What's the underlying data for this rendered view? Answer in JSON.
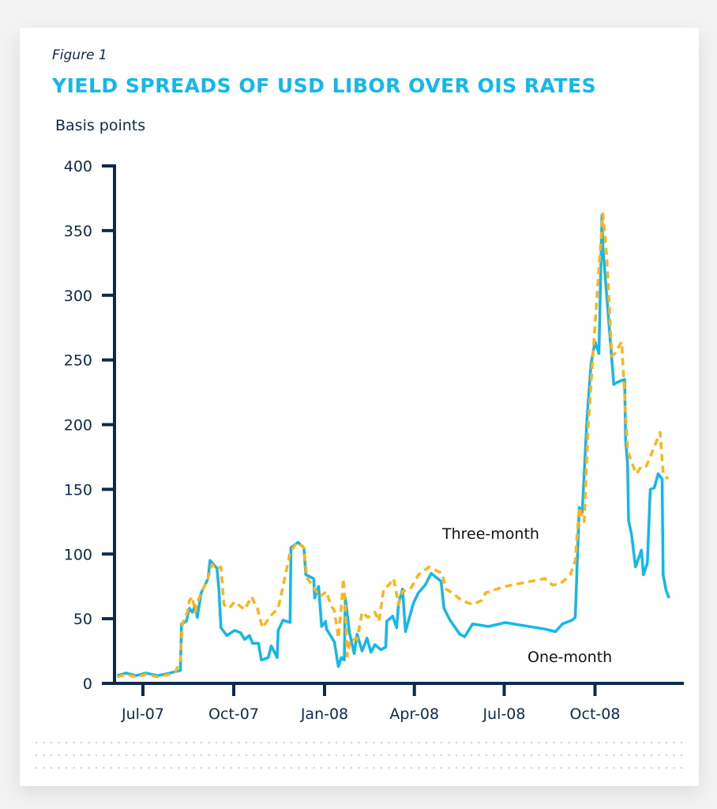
{
  "figure_label": "Figure 1",
  "colors": {
    "one_month": "#12b8ea",
    "three_month": "#fbb41b",
    "axis": "#0d2a4a",
    "title": "#12b8ea"
  },
  "chart_data": {
    "type": "line",
    "title": "YIELD SPREADS OF USD LIBOR OVER OIS RATES",
    "ylabel": "Basis points",
    "xlabel": "",
    "ylim": [
      0,
      400
    ],
    "yticks": [
      0,
      50,
      100,
      150,
      200,
      250,
      300,
      350,
      400
    ],
    "xticks": [
      {
        "date": "2007-07-01",
        "label": "Jul-07"
      },
      {
        "date": "2007-10-01",
        "label": "Oct-07"
      },
      {
        "date": "2008-01-01",
        "label": "Jan-08"
      },
      {
        "date": "2008-04-01",
        "label": "Apr-08"
      },
      {
        "date": "2008-07-01",
        "label": "Jul-08"
      },
      {
        "date": "2008-10-01",
        "label": "Oct-08"
      }
    ],
    "grid": false,
    "series": [
      {
        "name": "Three-month",
        "style": "dashed",
        "points": [
          [
            "2007-06-05",
            5
          ],
          [
            "2007-06-14",
            7
          ],
          [
            "2007-06-24",
            5
          ],
          [
            "2007-07-04",
            7
          ],
          [
            "2007-07-16",
            5
          ],
          [
            "2007-07-28",
            7
          ],
          [
            "2007-08-03",
            9
          ],
          [
            "2007-08-08",
            18
          ],
          [
            "2007-08-10",
            46
          ],
          [
            "2007-08-15",
            55
          ],
          [
            "2007-08-17",
            64
          ],
          [
            "2007-08-20",
            67
          ],
          [
            "2007-08-23",
            55
          ],
          [
            "2007-08-25",
            62
          ],
          [
            "2007-08-29",
            70
          ],
          [
            "2007-09-04",
            79
          ],
          [
            "2007-09-09",
            92
          ],
          [
            "2007-09-14",
            89
          ],
          [
            "2007-09-18",
            90
          ],
          [
            "2007-09-21",
            61
          ],
          [
            "2007-09-26",
            58
          ],
          [
            "2007-10-02",
            63
          ],
          [
            "2007-10-12",
            57
          ],
          [
            "2007-10-19",
            67
          ],
          [
            "2007-10-25",
            58
          ],
          [
            "2007-10-30",
            43
          ],
          [
            "2007-11-07",
            52
          ],
          [
            "2007-11-15",
            58
          ],
          [
            "2007-11-21",
            79
          ],
          [
            "2007-11-27",
            101
          ],
          [
            "2007-12-04",
            109
          ],
          [
            "2007-12-11",
            105
          ],
          [
            "2007-12-14",
            82
          ],
          [
            "2007-12-22",
            73
          ],
          [
            "2007-12-27",
            67
          ],
          [
            "2008-01-03",
            71
          ],
          [
            "2008-01-07",
            61
          ],
          [
            "2008-01-11",
            56
          ],
          [
            "2008-01-15",
            35
          ],
          [
            "2008-01-18",
            60
          ],
          [
            "2008-01-20",
            81
          ],
          [
            "2008-01-22",
            60
          ],
          [
            "2008-01-24",
            21
          ],
          [
            "2008-01-27",
            34
          ],
          [
            "2008-02-03",
            34
          ],
          [
            "2008-02-08",
            55
          ],
          [
            "2008-02-14",
            51
          ],
          [
            "2008-02-21",
            55
          ],
          [
            "2008-02-25",
            48
          ],
          [
            "2008-03-01",
            73
          ],
          [
            "2008-03-06",
            76
          ],
          [
            "2008-03-11",
            81
          ],
          [
            "2008-03-16",
            61
          ],
          [
            "2008-03-20",
            71
          ],
          [
            "2008-03-28",
            73
          ],
          [
            "2008-04-05",
            84
          ],
          [
            "2008-04-16",
            90
          ],
          [
            "2008-04-29",
            85
          ],
          [
            "2008-05-03",
            73
          ],
          [
            "2008-05-11",
            69
          ],
          [
            "2008-05-19",
            64
          ],
          [
            "2008-05-30",
            61
          ],
          [
            "2008-06-08",
            64
          ],
          [
            "2008-06-12",
            70
          ],
          [
            "2008-07-02",
            75
          ],
          [
            "2008-08-11",
            81
          ],
          [
            "2008-08-19",
            76
          ],
          [
            "2008-08-27",
            77
          ],
          [
            "2008-09-06",
            84
          ],
          [
            "2008-09-11",
            95
          ],
          [
            "2008-09-15",
            136
          ],
          [
            "2008-09-20",
            125
          ],
          [
            "2008-09-24",
            198
          ],
          [
            "2008-09-30",
            266
          ],
          [
            "2008-10-05",
            321
          ],
          [
            "2008-10-09",
            363
          ],
          [
            "2008-10-13",
            329
          ],
          [
            "2008-10-18",
            253
          ],
          [
            "2008-10-21",
            255
          ],
          [
            "2008-10-28",
            264
          ],
          [
            "2008-11-03",
            180
          ],
          [
            "2008-11-07",
            171
          ],
          [
            "2008-11-12",
            162
          ],
          [
            "2008-11-17",
            168
          ],
          [
            "2008-11-22",
            168
          ],
          [
            "2008-11-27",
            177
          ],
          [
            "2008-12-06",
            194
          ],
          [
            "2008-12-09",
            162
          ],
          [
            "2008-12-14",
            158
          ]
        ]
      },
      {
        "name": "One-month",
        "style": "solid",
        "points": [
          [
            "2007-06-05",
            6
          ],
          [
            "2007-06-14",
            8
          ],
          [
            "2007-06-24",
            6
          ],
          [
            "2007-07-04",
            8
          ],
          [
            "2007-07-16",
            6
          ],
          [
            "2007-07-28",
            8
          ],
          [
            "2007-08-08",
            10
          ],
          [
            "2007-08-09",
            46
          ],
          [
            "2007-08-14",
            48
          ],
          [
            "2007-08-17",
            58
          ],
          [
            "2007-08-20",
            55
          ],
          [
            "2007-08-23",
            60
          ],
          [
            "2007-08-25",
            51
          ],
          [
            "2007-08-29",
            70
          ],
          [
            "2007-09-05",
            81
          ],
          [
            "2007-09-07",
            95
          ],
          [
            "2007-09-14",
            89
          ],
          [
            "2007-09-16",
            72
          ],
          [
            "2007-09-18",
            43
          ],
          [
            "2007-09-24",
            37
          ],
          [
            "2007-10-02",
            41
          ],
          [
            "2007-10-08",
            39
          ],
          [
            "2007-10-12",
            34
          ],
          [
            "2007-10-17",
            37
          ],
          [
            "2007-10-20",
            31
          ],
          [
            "2007-10-26",
            31
          ],
          [
            "2007-10-29",
            18
          ],
          [
            "2007-11-05",
            20
          ],
          [
            "2007-11-08",
            29
          ],
          [
            "2007-11-14",
            20
          ],
          [
            "2007-11-15",
            41
          ],
          [
            "2007-11-20",
            49
          ],
          [
            "2007-11-27",
            47
          ],
          [
            "2007-11-28",
            105
          ],
          [
            "2007-12-05",
            109
          ],
          [
            "2007-12-11",
            105
          ],
          [
            "2007-12-13",
            84
          ],
          [
            "2007-12-21",
            81
          ],
          [
            "2007-12-22",
            66
          ],
          [
            "2007-12-26",
            75
          ],
          [
            "2007-12-29",
            44
          ],
          [
            "2008-01-02",
            48
          ],
          [
            "2008-01-03",
            42
          ],
          [
            "2008-01-11",
            32
          ],
          [
            "2008-01-15",
            13
          ],
          [
            "2008-01-18",
            20
          ],
          [
            "2008-01-21",
            18
          ],
          [
            "2008-01-22",
            66
          ],
          [
            "2008-01-26",
            40
          ],
          [
            "2008-01-31",
            23
          ],
          [
            "2008-02-03",
            38
          ],
          [
            "2008-02-08",
            25
          ],
          [
            "2008-02-13",
            35
          ],
          [
            "2008-02-17",
            24
          ],
          [
            "2008-02-21",
            30
          ],
          [
            "2008-02-27",
            26
          ],
          [
            "2008-03-03",
            28
          ],
          [
            "2008-03-04",
            48
          ],
          [
            "2008-03-10",
            52
          ],
          [
            "2008-03-14",
            43
          ],
          [
            "2008-03-16",
            62
          ],
          [
            "2008-03-20",
            73
          ],
          [
            "2008-03-23",
            40
          ],
          [
            "2008-03-31",
            62
          ],
          [
            "2008-04-05",
            70
          ],
          [
            "2008-04-12",
            76
          ],
          [
            "2008-04-18",
            85
          ],
          [
            "2008-04-28",
            79
          ],
          [
            "2008-05-01",
            58
          ],
          [
            "2008-05-07",
            49
          ],
          [
            "2008-05-17",
            38
          ],
          [
            "2008-05-22",
            36
          ],
          [
            "2008-05-30",
            46
          ],
          [
            "2008-06-15",
            44
          ],
          [
            "2008-07-02",
            47
          ],
          [
            "2008-07-18",
            45
          ],
          [
            "2008-08-11",
            42
          ],
          [
            "2008-08-22",
            40
          ],
          [
            "2008-08-29",
            46
          ],
          [
            "2008-09-08",
            49
          ],
          [
            "2008-09-11",
            51
          ],
          [
            "2008-09-15",
            136
          ],
          [
            "2008-09-18",
            132
          ],
          [
            "2008-09-23",
            206
          ],
          [
            "2008-09-27",
            247
          ],
          [
            "2008-10-01",
            264
          ],
          [
            "2008-10-05",
            255
          ],
          [
            "2008-10-08",
            362
          ],
          [
            "2008-10-09",
            337
          ],
          [
            "2008-10-20",
            231
          ],
          [
            "2008-10-24",
            233
          ],
          [
            "2008-10-31",
            235
          ],
          [
            "2008-11-01",
            188
          ],
          [
            "2008-11-03",
            169
          ],
          [
            "2008-11-04",
            126
          ],
          [
            "2008-11-07",
            115
          ],
          [
            "2008-11-11",
            90
          ],
          [
            "2008-11-17",
            103
          ],
          [
            "2008-11-19",
            84
          ],
          [
            "2008-11-23",
            93
          ],
          [
            "2008-11-26",
            150
          ],
          [
            "2008-11-30",
            151
          ],
          [
            "2008-12-04",
            162
          ],
          [
            "2008-12-08",
            158
          ],
          [
            "2008-12-09",
            84
          ],
          [
            "2008-12-12",
            72
          ],
          [
            "2008-12-15",
            66
          ]
        ]
      }
    ],
    "annotations": [
      "Three-month",
      "One-month"
    ]
  }
}
